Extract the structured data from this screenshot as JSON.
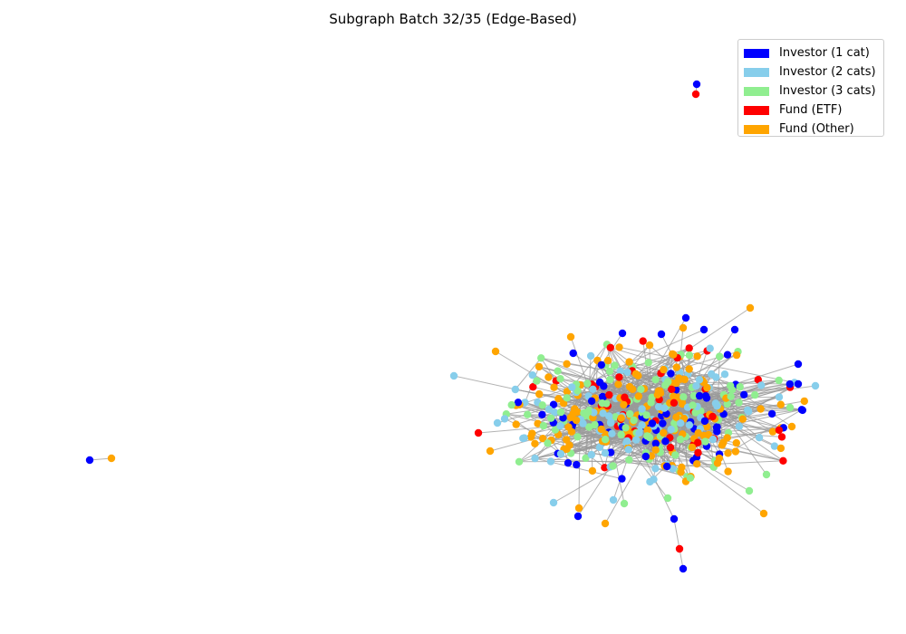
{
  "title": "Subgraph Batch 32/35 (Edge-Based)",
  "legend": [
    {
      "label": "Investor (1 cat)",
      "color": "#0000ff",
      "key": "inv1"
    },
    {
      "label": "Investor (2 cats)",
      "color": "#87ceeb",
      "key": "inv2"
    },
    {
      "label": "Investor (3 cats)",
      "color": "#90ee90",
      "key": "inv3"
    },
    {
      "label": "Fund (ETF)",
      "color": "#ff0000",
      "key": "etf"
    },
    {
      "label": "Fund (Other)",
      "color": "#ffa500",
      "key": "other"
    }
  ],
  "edge_color": "#999999"
}
